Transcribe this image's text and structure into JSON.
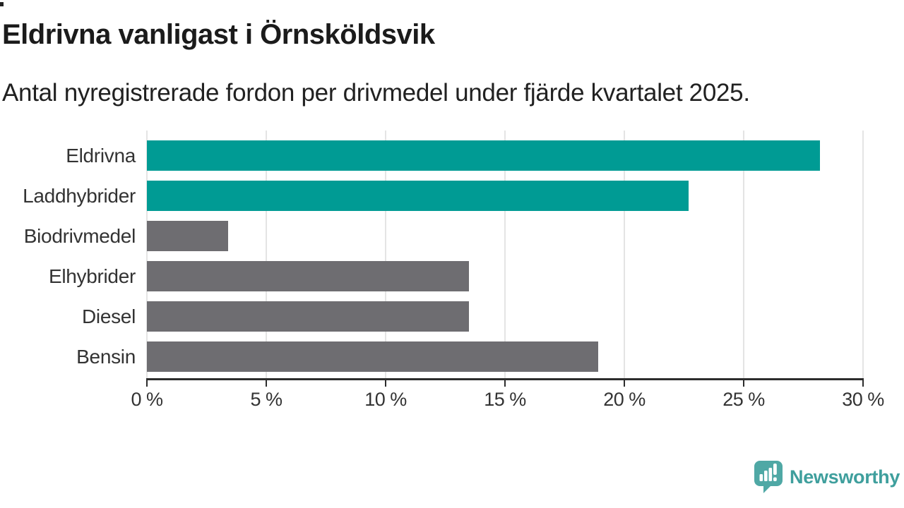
{
  "page": {
    "background": "#ffffff"
  },
  "chart_data": {
    "type": "bar",
    "orientation": "horizontal",
    "title": "Eldrivna vanligast i Örnsköldsvik",
    "subtitle": "Antal nyregistrerade fordon per drivmedel under fjärde kvartalet 2025.",
    "categories": [
      "Eldrivna",
      "Laddhybrider",
      "Biodrivmedel",
      "Elhybrider",
      "Diesel",
      "Bensin"
    ],
    "values": [
      28.2,
      22.7,
      3.4,
      13.5,
      13.5,
      18.9
    ],
    "bar_colors": [
      "#009b94",
      "#009b94",
      "#6e6d71",
      "#6e6d71",
      "#6e6d71",
      "#6e6d71"
    ],
    "xlabel": "",
    "ylabel": "",
    "xlim": [
      0,
      30
    ],
    "x_tick_values": [
      0,
      5,
      10,
      15,
      20,
      25,
      30
    ],
    "x_tick_labels": [
      "0 %",
      "5 %",
      "10 %",
      "15 %",
      "20 %",
      "25 %",
      "30 %"
    ],
    "grid": "vertical-gridlines-on",
    "legend": "none"
  },
  "colors": {
    "highlight": "#009b94",
    "base_gray": "#6e6d71",
    "gridline": "#e4e4e4",
    "axis": "#2d2d2d",
    "tick_text": "#333333",
    "title_text": "#1b1b1b",
    "logo_teal": "#4fa8a5",
    "logo_text_teal": "#3f9f9d"
  },
  "branding": {
    "logo_text": "Newsworthy",
    "logo_icon": "newsworthy-speech-bubble-bar-chart-icon"
  }
}
